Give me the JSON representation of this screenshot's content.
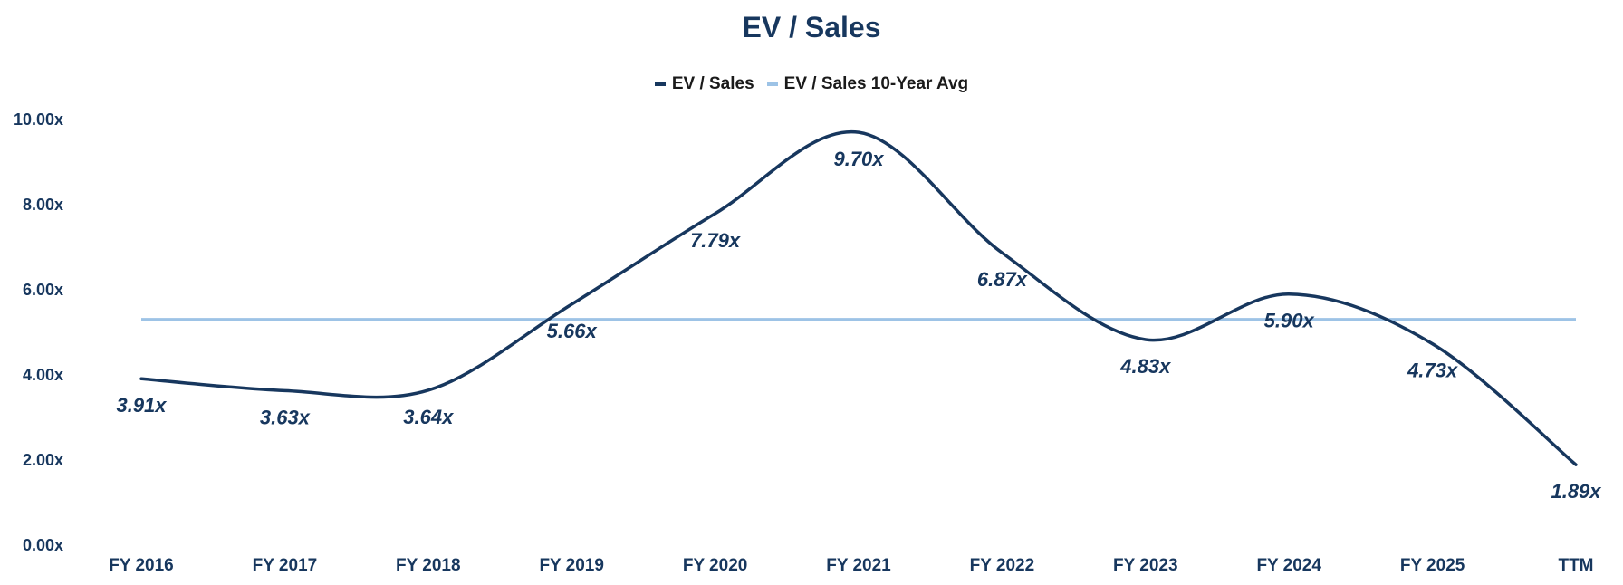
{
  "chart_data": {
    "type": "line",
    "title": "EV / Sales",
    "categories": [
      "FY 2016",
      "FY 2017",
      "FY 2018",
      "FY 2019",
      "FY 2020",
      "FY 2021",
      "FY 2022",
      "FY 2023",
      "FY 2024",
      "FY 2025",
      "TTM"
    ],
    "series": [
      {
        "name": "EV / Sales",
        "values": [
          3.91,
          3.63,
          3.64,
          5.66,
          7.79,
          9.7,
          6.87,
          4.83,
          5.9,
          4.73,
          1.89
        ],
        "data_labels": [
          "3.91x",
          "3.63x",
          "3.64x",
          "5.66x",
          "7.79x",
          "9.70x",
          "6.87x",
          "4.83x",
          "5.90x",
          "4.73x",
          "1.89x"
        ],
        "color": "#17375e"
      },
      {
        "name": "EV / Sales 10-Year Avg",
        "value": 5.3,
        "color": "#9dc3e6"
      }
    ],
    "ylim": [
      0,
      10
    ],
    "yticks": [
      {
        "value": 0,
        "label": "0.00x"
      },
      {
        "value": 2,
        "label": "2.00x"
      },
      {
        "value": 4,
        "label": "4.00x"
      },
      {
        "value": 6,
        "label": "6.00x"
      },
      {
        "value": 8,
        "label": "8.00x"
      },
      {
        "value": 10,
        "label": "10.00x"
      }
    ],
    "grid": false,
    "smooth": true,
    "legend_position": "top-center"
  }
}
